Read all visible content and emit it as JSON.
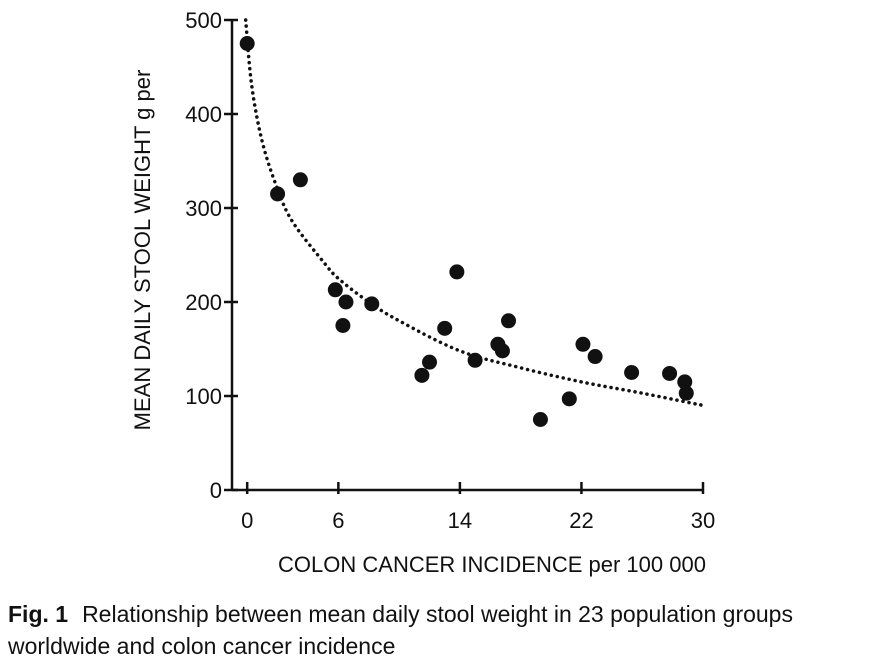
{
  "chart_data": {
    "type": "scatter",
    "xlabel": "COLON CANCER INCIDENCE per 100 000",
    "ylabel": "MEAN DAILY STOOL WEIGHT g per",
    "x_ticks": [
      0,
      6,
      14,
      22,
      30
    ],
    "y_ticks": [
      0,
      100,
      200,
      300,
      400,
      500
    ],
    "xlim": [
      -1,
      30
    ],
    "ylim": [
      0,
      500
    ],
    "points": [
      {
        "x": 0,
        "y": 475
      },
      {
        "x": 2,
        "y": 315
      },
      {
        "x": 3.5,
        "y": 330
      },
      {
        "x": 5.8,
        "y": 213
      },
      {
        "x": 6.5,
        "y": 200
      },
      {
        "x": 6.3,
        "y": 175
      },
      {
        "x": 8.2,
        "y": 198
      },
      {
        "x": 11.5,
        "y": 122
      },
      {
        "x": 12,
        "y": 136
      },
      {
        "x": 13,
        "y": 172
      },
      {
        "x": 13.8,
        "y": 232
      },
      {
        "x": 15,
        "y": 138
      },
      {
        "x": 16.5,
        "y": 155
      },
      {
        "x": 16.8,
        "y": 148
      },
      {
        "x": 17.2,
        "y": 180
      },
      {
        "x": 19.3,
        "y": 75
      },
      {
        "x": 21.2,
        "y": 97
      },
      {
        "x": 22.1,
        "y": 155
      },
      {
        "x": 22.9,
        "y": 142
      },
      {
        "x": 25.3,
        "y": 125
      },
      {
        "x": 27.8,
        "y": 124
      },
      {
        "x": 28.8,
        "y": 115
      },
      {
        "x": 28.9,
        "y": 103
      }
    ],
    "trend": {
      "style": "dotted",
      "x": [
        -0.1,
        0.3,
        1,
        2,
        3,
        5,
        6,
        8,
        10,
        14,
        18,
        22,
        26,
        30
      ],
      "y": [
        500,
        430,
        370,
        320,
        285,
        243,
        225,
        200,
        180,
        148,
        130,
        115,
        103,
        90
      ]
    }
  },
  "caption": {
    "label": "Fig. 1",
    "text": "Relationship between mean daily stool weight in 23 population groups worldwide and colon cancer incidence"
  }
}
